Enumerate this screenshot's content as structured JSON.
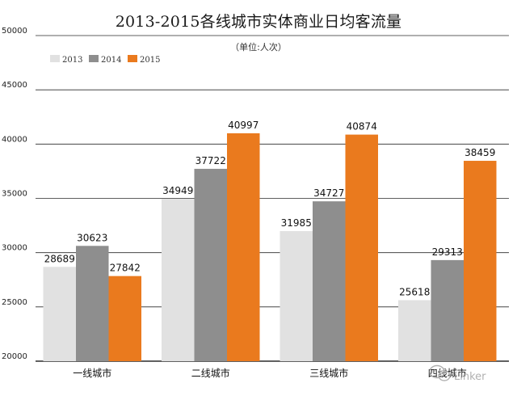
{
  "chart_data": {
    "type": "bar",
    "title": "2013-2015各线城市实体商业日均客流量",
    "unit_note": "（单位:人次）",
    "categories": [
      "一线城市",
      "二线城市",
      "三线城市",
      "四线城市"
    ],
    "series": [
      {
        "name": "2013",
        "color": "#e1e1e1",
        "values": [
          28689,
          34949,
          31985,
          25618
        ]
      },
      {
        "name": "2014",
        "color": "#8e8e8e",
        "values": [
          30623,
          37722,
          34727,
          29313
        ]
      },
      {
        "name": "2015",
        "color": "#ea7a1e",
        "values": [
          27842,
          40997,
          40874,
          38459
        ]
      }
    ],
    "ylim": [
      20000,
      50000
    ],
    "yticks": [
      20000,
      25000,
      30000,
      35000,
      40000,
      45000,
      50000
    ],
    "grid": true,
    "legend_position": "top-left",
    "data_labels": true
  },
  "watermark": {
    "text": "Linker",
    "icon": "wechat-icon"
  }
}
